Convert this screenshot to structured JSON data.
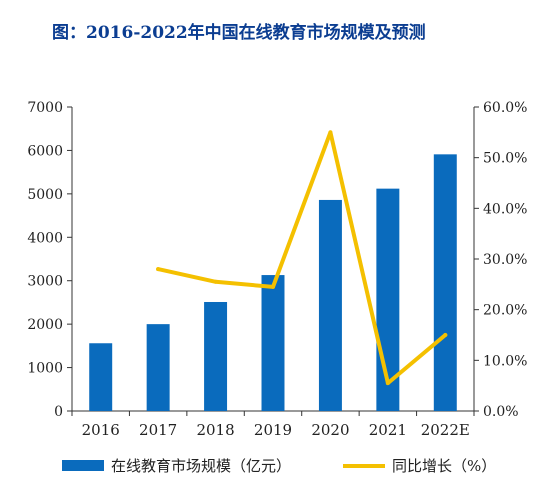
{
  "title": "图：2016-2022年中国在线教育市场规模及预测",
  "colors": {
    "bar": "#0a6bbd",
    "line": "#f4c000",
    "title": "#0b3d91",
    "axis": "#333333"
  },
  "chart_data": {
    "type": "bar",
    "categories": [
      "2016",
      "2017",
      "2018",
      "2019",
      "2020",
      "2021",
      "2022E"
    ],
    "series": [
      {
        "name": "在线教育市场规模（亿元）",
        "type": "bar",
        "axis": "left",
        "values": [
          1560,
          2000,
          2510,
          3130,
          4860,
          5120,
          5910
        ]
      },
      {
        "name": "同比增长（%）",
        "type": "line",
        "axis": "right",
        "values": [
          null,
          28.0,
          25.5,
          24.5,
          55.0,
          5.5,
          15.0
        ]
      }
    ],
    "y_left": {
      "min": 0,
      "max": 7000,
      "ticks": [
        "0",
        "1000",
        "2000",
        "3000",
        "4000",
        "5000",
        "6000",
        "7000"
      ]
    },
    "y_right": {
      "min": 0,
      "max": 60,
      "ticks": [
        "0.0%",
        "10.0%",
        "20.0%",
        "30.0%",
        "40.0%",
        "50.0%",
        "60.0%"
      ]
    },
    "legend": "bottom",
    "grid": false
  }
}
